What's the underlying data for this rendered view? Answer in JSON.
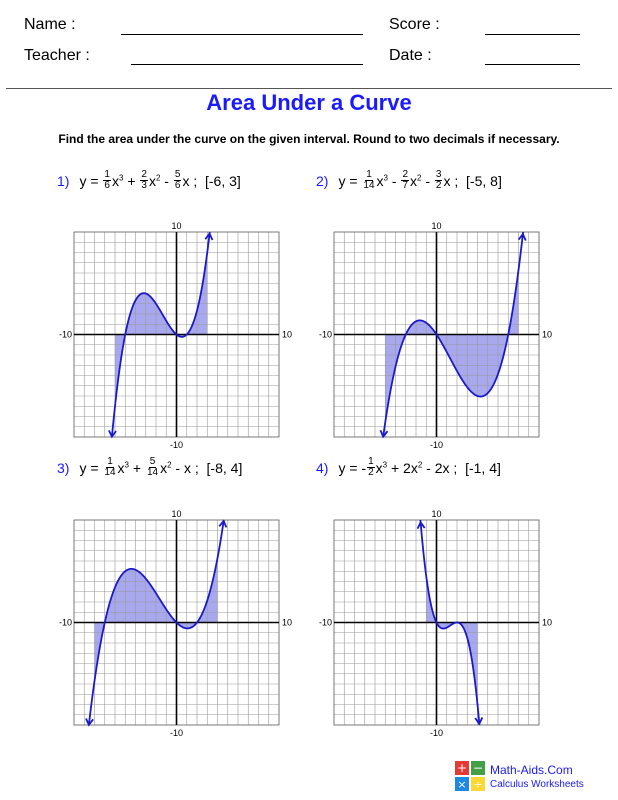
{
  "header": {
    "name_label": "Name :",
    "teacher_label": "Teacher :",
    "score_label": "Score :",
    "date_label": "Date :"
  },
  "title": "Area Under a Curve",
  "instructions": "Find the area under the curve on the given interval. Round to two decimals if necessary.",
  "problems": [
    {
      "number": "1)",
      "interval_text": "[-6, 3]",
      "coefficients": [
        0.1666667,
        0.6666667,
        -0.8333333,
        0
      ],
      "interval": [
        -6,
        3
      ],
      "y_max_label": "10",
      "y_min_label": "-10",
      "x_min_label": "-10",
      "x_max_label": "10"
    },
    {
      "number": "2)",
      "interval_text": "[-5, 8]",
      "coefficients": [
        0.0714286,
        -0.2857143,
        -1.5,
        0
      ],
      "interval": [
        -5,
        8
      ],
      "y_max_label": "10",
      "y_min_label": "-10",
      "x_min_label": "-10",
      "x_max_label": "10"
    },
    {
      "number": "3)",
      "interval_text": "[-8, 4]",
      "coefficients": [
        0.0714286,
        0.3571429,
        -1,
        0
      ],
      "interval": [
        -8,
        4
      ],
      "y_max_label": "10",
      "y_min_label": "-10",
      "x_min_label": "-10",
      "x_max_label": "10"
    },
    {
      "number": "4)",
      "interval_text": "[-1, 4]",
      "coefficients": [
        -0.5,
        2,
        -2,
        0
      ],
      "interval": [
        -1,
        4
      ],
      "y_max_label": "10",
      "y_min_label": "-10",
      "x_min_label": "-10",
      "x_max_label": "10"
    }
  ],
  "footer": {
    "brand": "Math-Aids.Com",
    "subtitle": "Calculus Worksheets"
  },
  "colors": {
    "accent": "#1a1aff",
    "curve": "#1a1acc",
    "shade": "#a8a8ee",
    "grid": "#999999"
  }
}
